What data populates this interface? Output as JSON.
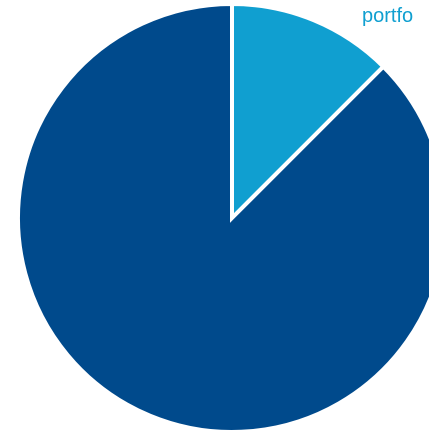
{
  "chart_data": {
    "type": "pie",
    "categories": [
      "portfo",
      ""
    ],
    "values": [
      12.5,
      87.5
    ],
    "colors": [
      "#109fd0",
      "#004a8c"
    ],
    "slice_border_color": "#ffffff",
    "labels": [
      {
        "text": "portfo",
        "color": "#109fd0"
      }
    ]
  }
}
